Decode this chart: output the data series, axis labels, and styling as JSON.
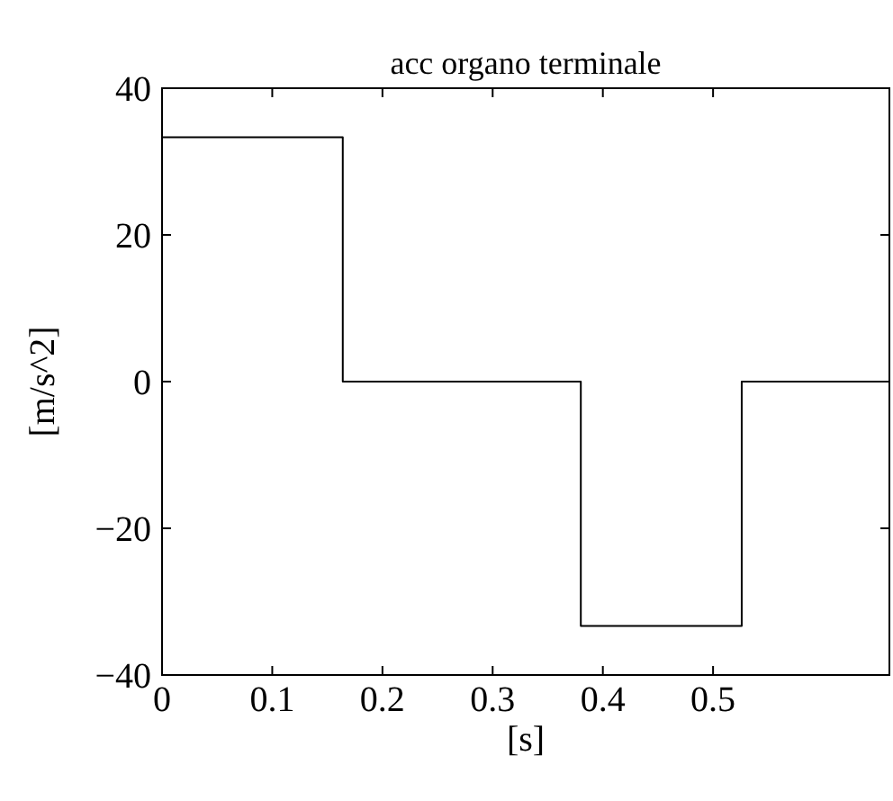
{
  "chart_data": {
    "type": "step",
    "title": "acc organo terminale",
    "xlabel": "[s]",
    "ylabel": "[m/s^2]",
    "x": [
      0,
      0.164,
      0.38,
      0.526,
      0.66
    ],
    "series": [
      {
        "color": "#000000",
        "values": [
          33.3,
          0,
          -33.3,
          0,
          0
        ]
      }
    ],
    "xlim": [
      0,
      0.66
    ],
    "ylim": [
      -40,
      40
    ],
    "xticks": [
      0,
      0.1,
      0.2,
      0.3,
      0.4,
      0.5
    ],
    "yticks": [
      -40,
      -20,
      0,
      20,
      40
    ],
    "grid": false
  }
}
